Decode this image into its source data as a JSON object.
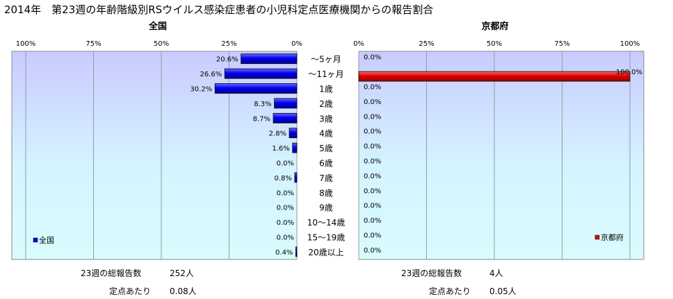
{
  "title": "2014年　第23週の年齢階級別RSウイルス感染症患者の小児科定点医療機関からの報告割合",
  "chart_data": [
    {
      "type": "bar",
      "orientation": "horizontal",
      "title": "全国",
      "legend": {
        "label": "全国",
        "placement": "bottom-left"
      },
      "axis_direction": "right-to-left",
      "xlim": [
        0,
        100
      ],
      "xticks": [
        "100%",
        "75%",
        "50%",
        "25%",
        "0%"
      ],
      "grid": true,
      "color": "#0000ee",
      "categories": [
        "～5ヶ月",
        "～11ヶ月",
        "1歳",
        "2歳",
        "3歳",
        "4歳",
        "5歳",
        "6歳",
        "7歳",
        "8歳",
        "9歳",
        "10～14歳",
        "15～19歳",
        "20歳以上"
      ],
      "values": [
        20.6,
        26.6,
        30.2,
        8.3,
        8.7,
        2.8,
        1.6,
        0.0,
        0.8,
        0.0,
        0.0,
        0.0,
        0.0,
        0.4
      ],
      "labels": [
        "20.6%",
        "26.6%",
        "30.2%",
        "8.3%",
        "8.7%",
        "2.8%",
        "1.6%",
        "0.0%",
        "0.8%",
        "0.0%",
        "0.0%",
        "0.0%",
        "0.0%",
        "0.4%"
      ]
    },
    {
      "type": "bar",
      "orientation": "horizontal",
      "title": "京都府",
      "legend": {
        "label": "京都府",
        "placement": "bottom-right"
      },
      "axis_direction": "left-to-right",
      "xlim": [
        0,
        100
      ],
      "xticks": [
        "0%",
        "25%",
        "50%",
        "75%",
        "100%"
      ],
      "grid": true,
      "color": "#dd0000",
      "categories": [
        "～5ヶ月",
        "～11ヶ月",
        "1歳",
        "2歳",
        "3歳",
        "4歳",
        "5歳",
        "6歳",
        "7歳",
        "8歳",
        "9歳",
        "10～14歳",
        "15～19歳",
        "20歳以上"
      ],
      "values": [
        0.0,
        100.0,
        0.0,
        0.0,
        0.0,
        0.0,
        0.0,
        0.0,
        0.0,
        0.0,
        0.0,
        0.0,
        0.0,
        0.0
      ],
      "labels": [
        "0.0%",
        "100.0%",
        "0.0%",
        "0.0%",
        "0.0%",
        "0.0%",
        "0.0%",
        "0.0%",
        "0.0%",
        "0.0%",
        "0.0%",
        "0.0%",
        "0.0%",
        "0.0%"
      ]
    }
  ],
  "footer": {
    "national": {
      "total_label": "23週の総報告数",
      "total_value": "252人",
      "per_label": "定点あたり",
      "per_value": "0.08人"
    },
    "kyoto": {
      "total_label": "23週の総報告数",
      "total_value": "4人",
      "per_label": "定点あたり",
      "per_value": "0.05人"
    }
  }
}
